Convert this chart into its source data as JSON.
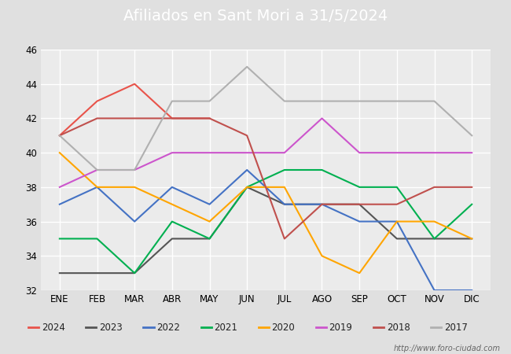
{
  "title": "Afiliados en Sant Mori a 31/5/2024",
  "title_color": "#ffffff",
  "title_bg": "#4472c4",
  "ylim": [
    32,
    46
  ],
  "yticks": [
    32,
    34,
    36,
    38,
    40,
    42,
    44,
    46
  ],
  "months": [
    "ENE",
    "FEB",
    "MAR",
    "ABR",
    "MAY",
    "JUN",
    "JUL",
    "AGO",
    "SEP",
    "OCT",
    "NOV",
    "DIC"
  ],
  "series": {
    "2024": {
      "color": "#e8534a",
      "data": [
        41,
        43,
        44,
        42,
        42,
        null,
        null,
        null,
        null,
        null,
        null,
        null
      ]
    },
    "2023": {
      "color": "#555555",
      "data": [
        33,
        33,
        33,
        35,
        35,
        38,
        37,
        37,
        37,
        35,
        35,
        35
      ]
    },
    "2022": {
      "color": "#4472c4",
      "data": [
        37,
        38,
        36,
        38,
        37,
        39,
        37,
        37,
        36,
        36,
        32,
        32
      ]
    },
    "2021": {
      "color": "#00b050",
      "data": [
        35,
        35,
        33,
        36,
        35,
        38,
        39,
        39,
        38,
        38,
        35,
        37
      ]
    },
    "2020": {
      "color": "#ffa500",
      "data": [
        40,
        38,
        38,
        37,
        36,
        38,
        38,
        34,
        33,
        36,
        36,
        35
      ]
    },
    "2019": {
      "color": "#cc55cc",
      "data": [
        38,
        39,
        39,
        40,
        40,
        40,
        40,
        42,
        40,
        40,
        40,
        40
      ]
    },
    "2018": {
      "color": "#c0504d",
      "data": [
        41,
        42,
        42,
        42,
        42,
        41,
        35,
        37,
        37,
        37,
        38,
        38
      ]
    },
    "2017": {
      "color": "#b0b0b0",
      "data": [
        41,
        39,
        39,
        43,
        43,
        45,
        43,
        43,
        43,
        43,
        43,
        41
      ]
    }
  },
  "legend_order": [
    "2024",
    "2023",
    "2022",
    "2021",
    "2020",
    "2019",
    "2018",
    "2017"
  ],
  "watermark": "http://www.foro-ciudad.com",
  "bg_color": "#e0e0e0",
  "plot_bg_color": "#ebebeb",
  "grid_color": "#ffffff"
}
